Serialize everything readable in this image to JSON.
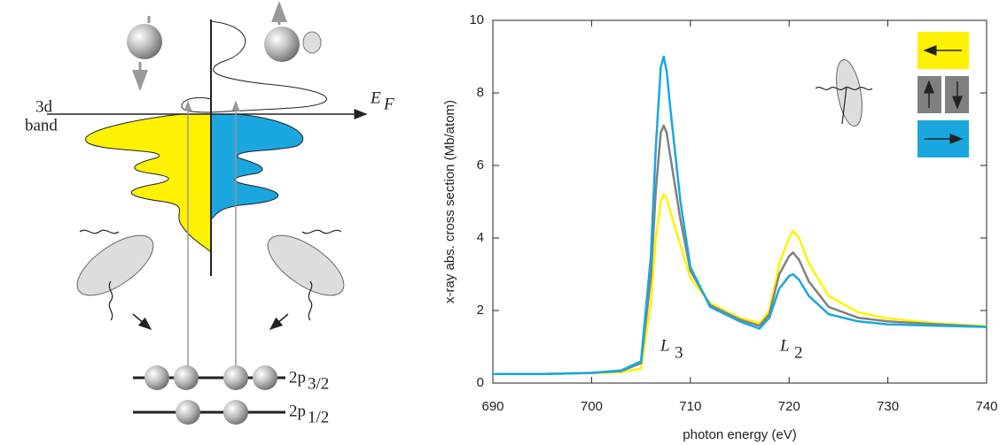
{
  "diagram": {
    "band_label": [
      "3d",
      "band"
    ],
    "fermi_level": {
      "text": "E",
      "subscript": "F"
    },
    "core_levels": [
      {
        "text": "2p",
        "subscript": "3/2"
      },
      {
        "text": "2p",
        "subscript": "1/2"
      }
    ]
  },
  "chart_data": {
    "type": "line",
    "x": [
      690,
      695,
      700,
      703,
      705,
      706,
      706.5,
      707,
      707.3,
      707.6,
      708,
      709,
      710,
      712,
      715,
      717,
      718,
      719,
      720,
      720.4,
      721,
      722,
      724,
      727,
      730,
      735,
      740
    ],
    "series": [
      {
        "color": "#fff200",
        "values": [
          0.25,
          0.25,
          0.27,
          0.3,
          0.4,
          2.2,
          4.0,
          5.0,
          5.2,
          5.1,
          4.7,
          3.8,
          2.9,
          2.2,
          1.8,
          1.65,
          2.0,
          3.3,
          4.0,
          4.2,
          4.0,
          3.3,
          2.4,
          1.95,
          1.78,
          1.65,
          1.57
        ]
      },
      {
        "color": "#808080",
        "values": [
          0.25,
          0.25,
          0.28,
          0.33,
          0.55,
          2.9,
          5.3,
          6.9,
          7.1,
          6.9,
          6.2,
          4.5,
          3.1,
          2.15,
          1.75,
          1.58,
          1.9,
          3.0,
          3.5,
          3.6,
          3.4,
          2.8,
          2.1,
          1.8,
          1.7,
          1.62,
          1.55
        ]
      },
      {
        "color": "#1aa7e0",
        "values": [
          0.25,
          0.25,
          0.28,
          0.35,
          0.6,
          3.5,
          6.5,
          8.7,
          9.0,
          8.6,
          7.5,
          5.0,
          3.2,
          2.1,
          1.7,
          1.5,
          1.8,
          2.6,
          2.95,
          3.0,
          2.85,
          2.4,
          1.9,
          1.7,
          1.62,
          1.58,
          1.55
        ]
      }
    ],
    "xlim": [
      690,
      740
    ],
    "ylim": [
      0,
      10
    ],
    "xticks": [
      690,
      700,
      710,
      720,
      730,
      740
    ],
    "yticks": [
      0,
      2,
      4,
      6,
      8,
      10
    ],
    "xlabel": "photon energy (eV)",
    "ylabel": "x-ray abs. cross section (Mb/atom)",
    "annotations": [
      {
        "text": "L",
        "subscript": "3"
      },
      {
        "text": "L",
        "subscript": "2"
      }
    ],
    "legend": "upper right"
  }
}
